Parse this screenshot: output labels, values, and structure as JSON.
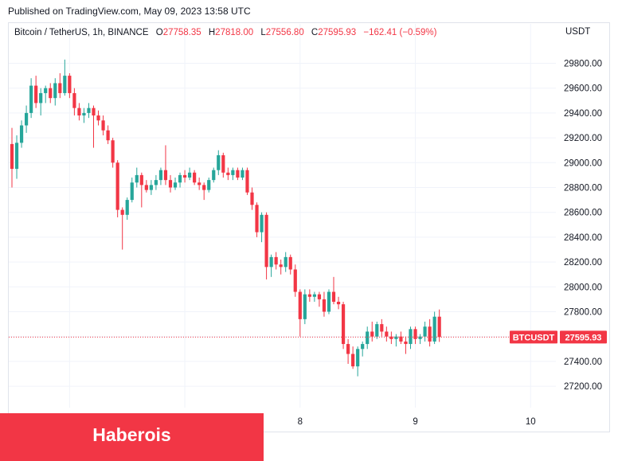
{
  "header": {
    "published": "Published on TradingView.com, May 09, 2023 13:58 UTC"
  },
  "legend": {
    "instrument": "Bitcoin / TetherUS, 1h, BINANCE",
    "open_key": "O",
    "open": "27758.35",
    "high_key": "H",
    "high": "27818.00",
    "low_key": "L",
    "low": "27556.80",
    "close_key": "C",
    "close": "27595.93",
    "change": "−162.41 (−0.59%)"
  },
  "axis": {
    "currency": "USDT"
  },
  "price_label": {
    "symbol": "BTCUSDT",
    "value": "27595.93"
  },
  "banner": {
    "text": "Haberois"
  },
  "colors": {
    "up": "#26a69a",
    "down": "#f23645",
    "grid": "#f0f3fa",
    "text": "#131722"
  },
  "chart_data": {
    "type": "candlestick",
    "symbol": "BTCUSDT",
    "interval": "1h",
    "y_ticks": [
      27200,
      27400,
      27600,
      27800,
      28000,
      28200,
      28400,
      28600,
      28800,
      29000,
      29200,
      29400,
      29600,
      29800
    ],
    "y_tick_labels": [
      "27200.00",
      "27400.00",
      "27600.00",
      "27800.00",
      "28000.00",
      "28200.00",
      "28400.00",
      "28600.00",
      "28800.00",
      "29000.00",
      "29200.00",
      "29400.00",
      "29600.00",
      "29800.00"
    ],
    "x_ticks": [
      {
        "label": "8",
        "bar": 60
      },
      {
        "label": "9",
        "bar": 84
      },
      {
        "label": "10",
        "bar": 108
      }
    ],
    "ylim": [
      27080,
      29960
    ],
    "last_price": 27595.93,
    "grid": true,
    "candles": [
      [
        29150,
        29280,
        28800,
        28950
      ],
      [
        28950,
        29220,
        28870,
        29160
      ],
      [
        29160,
        29340,
        29120,
        29300
      ],
      [
        29300,
        29460,
        29240,
        29400
      ],
      [
        29400,
        29680,
        29360,
        29620
      ],
      [
        29620,
        29700,
        29440,
        29480
      ],
      [
        29480,
        29600,
        29380,
        29560
      ],
      [
        29560,
        29620,
        29480,
        29600
      ],
      [
        29600,
        29640,
        29480,
        29520
      ],
      [
        29520,
        29680,
        29460,
        29640
      ],
      [
        29640,
        29720,
        29520,
        29560
      ],
      [
        29560,
        29830,
        29540,
        29700
      ],
      [
        29700,
        29720,
        29520,
        29560
      ],
      [
        29560,
        29600,
        29380,
        29440
      ],
      [
        29440,
        29480,
        29340,
        29380
      ],
      [
        29380,
        29440,
        29320,
        29400
      ],
      [
        29400,
        29480,
        29360,
        29440
      ],
      [
        29440,
        29460,
        29120,
        29380
      ],
      [
        29380,
        29420,
        29300,
        29340
      ],
      [
        29340,
        29380,
        29220,
        29260
      ],
      [
        29260,
        29300,
        29150,
        29180
      ],
      [
        29180,
        29200,
        28960,
        29000
      ],
      [
        29000,
        29020,
        28560,
        28620
      ],
      [
        28620,
        28640,
        28300,
        28580
      ],
      [
        28580,
        28720,
        28540,
        28700
      ],
      [
        28700,
        28880,
        28680,
        28840
      ],
      [
        28840,
        28960,
        28800,
        28900
      ],
      [
        28900,
        28920,
        28640,
        28820
      ],
      [
        28820,
        28860,
        28760,
        28780
      ],
      [
        28780,
        28860,
        28740,
        28820
      ],
      [
        28820,
        28900,
        28780,
        28860
      ],
      [
        28860,
        28960,
        28820,
        28940
      ],
      [
        28940,
        29140,
        28820,
        28860
      ],
      [
        28860,
        28900,
        28760,
        28800
      ],
      [
        28800,
        28880,
        28780,
        28840
      ],
      [
        28840,
        28920,
        28800,
        28900
      ],
      [
        28900,
        28940,
        28840,
        28880
      ],
      [
        28880,
        28960,
        28860,
        28920
      ],
      [
        28920,
        28940,
        28820,
        28840
      ],
      [
        28840,
        28880,
        28780,
        28820
      ],
      [
        28820,
        28840,
        28700,
        28780
      ],
      [
        28780,
        28880,
        28760,
        28860
      ],
      [
        28860,
        28960,
        28840,
        28940
      ],
      [
        28940,
        29100,
        28900,
        29060
      ],
      [
        29060,
        29080,
        28880,
        28920
      ],
      [
        28920,
        28960,
        28860,
        28900
      ],
      [
        28900,
        28960,
        28860,
        28940
      ],
      [
        28940,
        28960,
        28860,
        28880
      ],
      [
        28880,
        28960,
        28860,
        28940
      ],
      [
        28940,
        28960,
        28740,
        28760
      ],
      [
        28760,
        28800,
        28620,
        28660
      ],
      [
        28660,
        28680,
        28400,
        28440
      ],
      [
        28440,
        28600,
        28360,
        28580
      ],
      [
        28580,
        28600,
        28060,
        28160
      ],
      [
        28160,
        28260,
        28080,
        28240
      ],
      [
        28240,
        28280,
        28140,
        28180
      ],
      [
        28180,
        28220,
        28100,
        28160
      ],
      [
        28160,
        28280,
        28120,
        28240
      ],
      [
        28240,
        28260,
        28100,
        28140
      ],
      [
        28140,
        28180,
        27920,
        27960
      ],
      [
        27960,
        27980,
        27600,
        27740
      ],
      [
        27740,
        27980,
        27700,
        27940
      ],
      [
        27940,
        27980,
        27880,
        27920
      ],
      [
        27920,
        27960,
        27880,
        27940
      ],
      [
        27940,
        27960,
        27840,
        27900
      ],
      [
        27900,
        27960,
        27760,
        27800
      ],
      [
        27800,
        27980,
        27780,
        27960
      ],
      [
        27960,
        28080,
        27860,
        27880
      ],
      [
        27880,
        27920,
        27820,
        27860
      ],
      [
        27860,
        27880,
        27500,
        27540
      ],
      [
        27540,
        27580,
        27380,
        27460
      ],
      [
        27460,
        27520,
        27340,
        27360
      ],
      [
        27360,
        27520,
        27280,
        27500
      ],
      [
        27500,
        27560,
        27440,
        27540
      ],
      [
        27540,
        27680,
        27500,
        27640
      ],
      [
        27640,
        27720,
        27560,
        27600
      ],
      [
        27600,
        27720,
        27580,
        27700
      ],
      [
        27700,
        27740,
        27600,
        27640
      ],
      [
        27640,
        27680,
        27560,
        27600
      ],
      [
        27600,
        27640,
        27540,
        27580
      ],
      [
        27580,
        27620,
        27520,
        27600
      ],
      [
        27600,
        27640,
        27540,
        27560
      ],
      [
        27560,
        27600,
        27460,
        27540
      ],
      [
        27540,
        27680,
        27500,
        27660
      ],
      [
        27660,
        27680,
        27540,
        27580
      ],
      [
        27580,
        27620,
        27540,
        27600
      ],
      [
        27600,
        27720,
        27560,
        27680
      ],
      [
        27680,
        27740,
        27520,
        27560
      ],
      [
        27560,
        27800,
        27540,
        27760
      ],
      [
        27760,
        27818,
        27557,
        27596
      ]
    ]
  }
}
